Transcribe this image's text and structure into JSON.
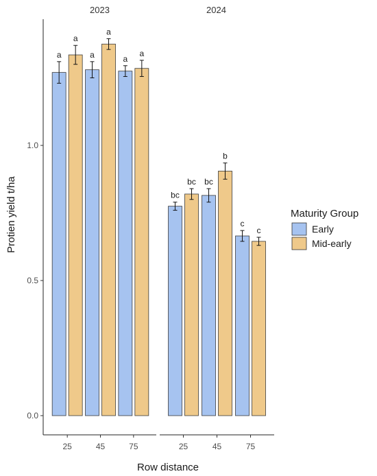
{
  "chart_data": {
    "type": "bar",
    "ylabel": "Protien yield t/ha",
    "xlabel": "Row distance",
    "ylim": [
      0,
      1.45
    ],
    "yticks": [
      "0.0",
      "0.5",
      "1.0"
    ],
    "grid": false,
    "legend": {
      "title": "Maturity Group",
      "placement": "right",
      "items": [
        {
          "name": "Early",
          "color": "#a6c3f0"
        },
        {
          "name": "Mid-early",
          "color": "#efc98a"
        }
      ]
    },
    "facets": [
      {
        "label": "2023",
        "categories": [
          "25",
          "45",
          "75"
        ],
        "series": [
          {
            "name": "Early",
            "values": [
              1.27,
              1.28,
              1.275
            ],
            "errors": [
              0.04,
              0.03,
              0.02
            ],
            "labels": [
              "a",
              "a",
              "a"
            ]
          },
          {
            "name": "Mid-early",
            "values": [
              1.335,
              1.375,
              1.285
            ],
            "errors": [
              0.035,
              0.02,
              0.03
            ],
            "labels": [
              "a",
              "a",
              "a"
            ]
          }
        ]
      },
      {
        "label": "2024",
        "categories": [
          "25",
          "45",
          "75"
        ],
        "series": [
          {
            "name": "Early",
            "values": [
              0.775,
              0.815,
              0.665
            ],
            "errors": [
              0.015,
              0.025,
              0.02
            ],
            "labels": [
              "bc",
              "bc",
              "c"
            ]
          },
          {
            "name": "Mid-early",
            "values": [
              0.82,
              0.905,
              0.645
            ],
            "errors": [
              0.02,
              0.03,
              0.015
            ],
            "labels": [
              "bc",
              "b",
              "c"
            ]
          }
        ]
      }
    ]
  }
}
